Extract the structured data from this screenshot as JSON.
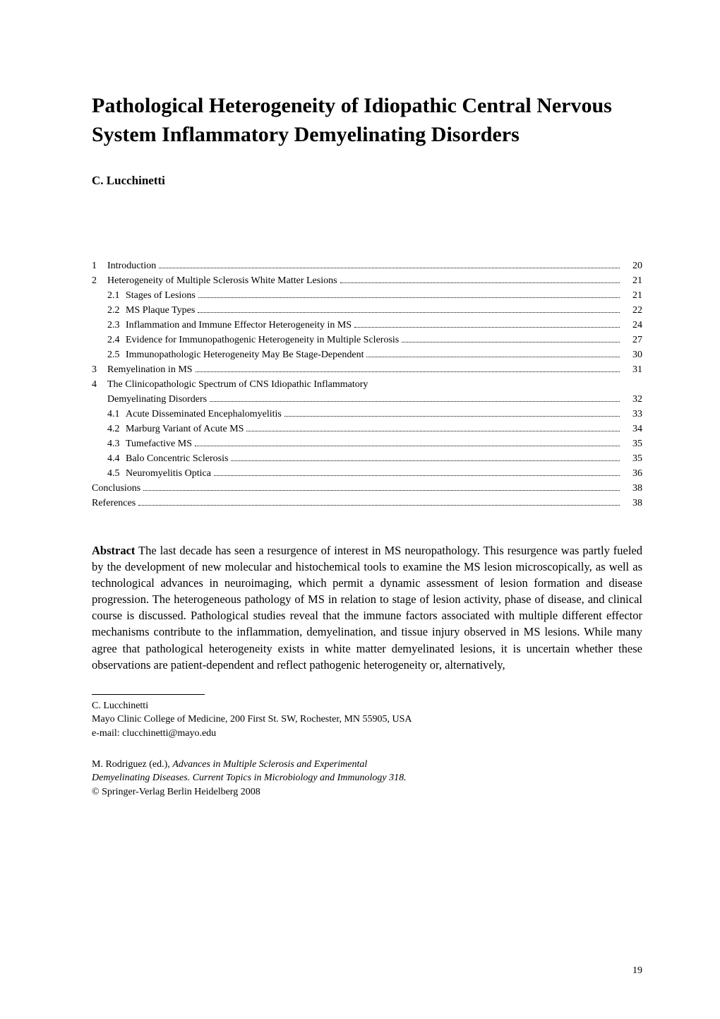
{
  "title": "Pathological Heterogeneity of Idiopathic Central Nervous System Inflammatory Demyelinating Disorders",
  "author": "C. Lucchinetti",
  "toc": [
    {
      "level": 1,
      "num": "1",
      "label": "Introduction",
      "page": "20"
    },
    {
      "level": 1,
      "num": "2",
      "label": "Heterogeneity of Multiple Sclerosis White Matter Lesions",
      "page": "21"
    },
    {
      "level": 2,
      "num": "2.1",
      "label": "Stages of Lesions",
      "page": "21"
    },
    {
      "level": 2,
      "num": "2.2",
      "label": "MS Plaque Types",
      "page": "22"
    },
    {
      "level": 2,
      "num": "2.3",
      "label": "Inflammation and Immune Effector Heterogeneity in MS",
      "page": "24"
    },
    {
      "level": 2,
      "num": "2.4",
      "label": "Evidence for Immunopathogenic Heterogeneity in Multiple Sclerosis",
      "page": "27"
    },
    {
      "level": 2,
      "num": "2.5",
      "label": "Immunopathologic Heterogeneity May Be Stage-Dependent",
      "page": "30"
    },
    {
      "level": 1,
      "num": "3",
      "label": "Remyelination in MS",
      "page": "31"
    },
    {
      "level": 1,
      "num": "4",
      "label": "The Clinicopathologic Spectrum of CNS Idiopathic Inflammatory",
      "page": ""
    },
    {
      "level": 1,
      "num": "",
      "label": "Demyelinating Disorders",
      "page": "32"
    },
    {
      "level": 2,
      "num": "4.1",
      "label": "Acute Disseminated Encephalomyelitis",
      "page": "33"
    },
    {
      "level": 2,
      "num": "4.2",
      "label": "Marburg Variant of Acute MS",
      "page": "34"
    },
    {
      "level": 2,
      "num": "4.3",
      "label": "Tumefactive MS",
      "page": "35"
    },
    {
      "level": 2,
      "num": "4.4",
      "label": "Balo Concentric Sclerosis",
      "page": "35"
    },
    {
      "level": 2,
      "num": "4.5",
      "label": "Neuromyelitis Optica",
      "page": "36"
    },
    {
      "level": 0,
      "num": "",
      "label": "Conclusions",
      "page": "38"
    },
    {
      "level": 0,
      "num": "",
      "label": "References",
      "page": "38"
    }
  ],
  "abstract_label": "Abstract",
  "abstract_text": " The last decade has seen a resurgence of interest in MS neuropathology. This resurgence was partly fueled by the development of new molecular and histochemical tools to examine the MS lesion microscopically, as well as technological advances in neuroimaging, which permit a dynamic assessment of lesion formation and disease progression. The heterogeneous pathology of MS in relation to stage of lesion activity, phase of disease, and clinical course is discussed. Pathological studies reveal that the immune factors associated with multiple different effector mechanisms contribute to the inflammation, demyelination, and tissue injury observed in MS lesions. While many agree that pathological heterogeneity exists in white matter demyelinated lesions, it is uncertain whether these observations are patient-dependent and reflect pathogenic heterogeneity or, alternatively,",
  "footnote": {
    "author": "C. Lucchinetti",
    "affiliation": "Mayo Clinic College of Medicine, 200 First St. SW, Rochester, MN 55905, USA",
    "email": "e-mail: clucchinetti@mayo.edu"
  },
  "citation": {
    "editor": "M. Rodriguez (ed.), ",
    "title": "Advances in Multiple Sclerosis and Experimental",
    "title2": "Demyelinating Diseases. Current Topics in Microbiology and Immunology 318.",
    "copyright": "© Springer-Verlag Berlin Heidelberg 2008"
  },
  "page_number": "19"
}
